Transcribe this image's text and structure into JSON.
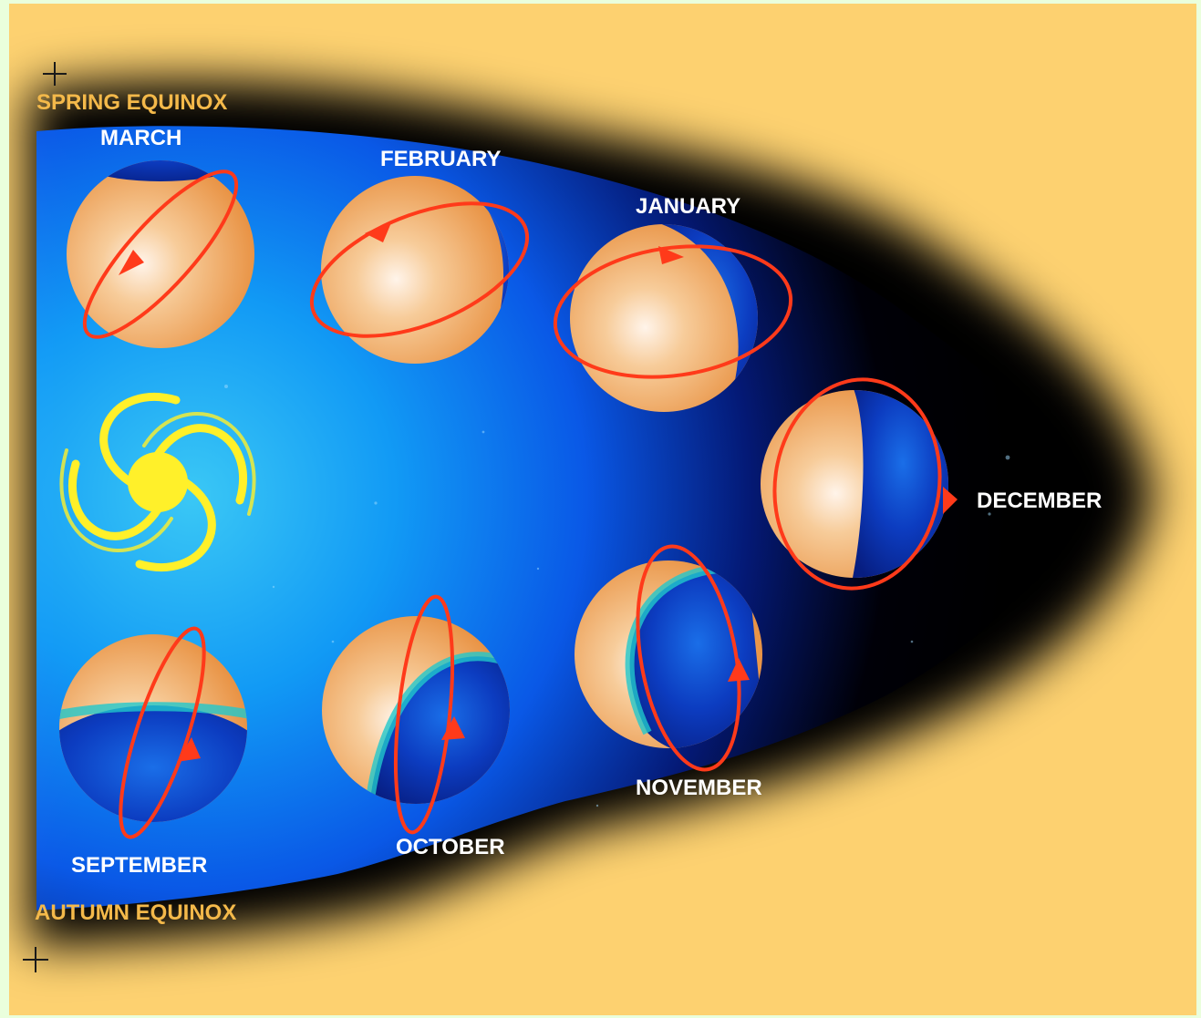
{
  "equinoxes": {
    "spring": "SPRING EQUINOX",
    "autumn": "AUTUMN EQUINOX"
  },
  "months": {
    "march": "MARCH",
    "february": "FEBRUARY",
    "january": "JANUARY",
    "december": "DECEMBER",
    "november": "NOVEMBER",
    "october": "OCTOBER",
    "september": "SEPTEMBER"
  },
  "colors": {
    "background": "#fdd170",
    "space_deep": "#000000",
    "space_light": "#39c4ff",
    "planet_lit": "#f3b67a",
    "planet_shadow": "#0a2ea8",
    "orbit_arrow": "#ff3a1a",
    "sun_spiral": "#ffee1a",
    "equinox_text": "#f4b94a",
    "month_text": "#ffffff"
  }
}
